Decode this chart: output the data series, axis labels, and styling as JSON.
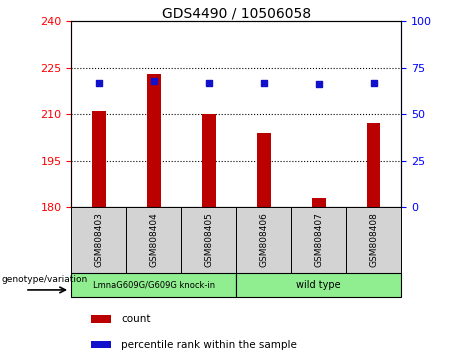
{
  "title": "GDS4490 / 10506058",
  "samples": [
    "GSM808403",
    "GSM808404",
    "GSM808405",
    "GSM808406",
    "GSM808407",
    "GSM808408"
  ],
  "counts": [
    211,
    223,
    210,
    204,
    183,
    207
  ],
  "percentile_ranks": [
    67,
    68,
    67,
    67,
    66,
    67
  ],
  "ylim_left": [
    180,
    240
  ],
  "ylim_right": [
    0,
    100
  ],
  "yticks_left": [
    180,
    195,
    210,
    225,
    240
  ],
  "yticks_right": [
    0,
    25,
    50,
    75,
    100
  ],
  "bar_color": "#bb0000",
  "dot_color": "#1111cc",
  "grid_color": "#000000",
  "group1_label": "LmnaG609G/G609G knock-in",
  "group2_label": "wild type",
  "group_color": "#90ee90",
  "group_box_color": "#d3d3d3",
  "xlabel_bottom": "genotype/variation",
  "legend_count_label": "count",
  "legend_pct_label": "percentile rank within the sample",
  "title_fontsize": 10,
  "tick_fontsize": 8,
  "bar_width": 0.25
}
